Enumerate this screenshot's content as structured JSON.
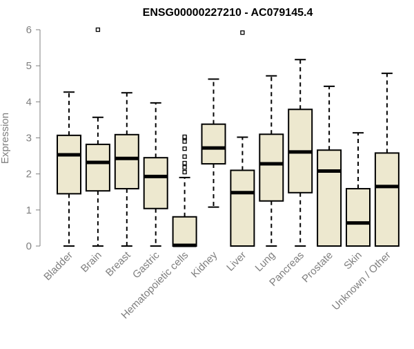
{
  "chart_data": {
    "type": "boxplot",
    "title": "ENSG00000227210 - AC079145.4",
    "xlabel": "",
    "ylabel": "Expression",
    "ylim": [
      0,
      6
    ],
    "yticks": [
      0,
      1,
      2,
      3,
      4,
      5,
      6
    ],
    "grid": false,
    "legend": "none",
    "colors": {
      "box_fill": "#ede8cf",
      "stroke": "#000000",
      "axis_text": "#7f7f7f"
    },
    "categories": [
      "Bladder",
      "Brain",
      "Breast",
      "Gastric",
      "Hematopoietic cells",
      "Kidney",
      "Liver",
      "Lung",
      "Pancreas",
      "Prostate",
      "Skin",
      "Unknown / Other"
    ],
    "boxes": [
      {
        "category": "Bladder",
        "min": 0,
        "q1": 1.45,
        "median": 2.53,
        "q3": 3.07,
        "max": 4.27,
        "outliers": []
      },
      {
        "category": "Brain",
        "min": 0,
        "q1": 1.53,
        "median": 2.32,
        "q3": 2.82,
        "max": 3.57,
        "outliers": [
          6.0
        ]
      },
      {
        "category": "Breast",
        "min": 0,
        "q1": 1.59,
        "median": 2.43,
        "q3": 3.09,
        "max": 4.25,
        "outliers": []
      },
      {
        "category": "Gastric",
        "min": 0,
        "q1": 1.04,
        "median": 1.93,
        "q3": 2.45,
        "max": 3.97,
        "outliers": []
      },
      {
        "category": "Hematopoietic cells",
        "min": 0,
        "q1": 0,
        "median": 0.02,
        "q3": 0.81,
        "max": 1.9,
        "outliers": [
          2.05,
          2.18,
          2.3,
          2.48,
          2.7,
          2.9,
          3.0,
          3.03
        ]
      },
      {
        "category": "Kidney",
        "min": 1.08,
        "q1": 2.28,
        "median": 2.72,
        "q3": 3.38,
        "max": 4.63,
        "outliers": []
      },
      {
        "category": "Liver",
        "min": 0,
        "q1": 0,
        "median": 1.48,
        "q3": 2.1,
        "max": 3.02,
        "outliers": [
          5.92
        ]
      },
      {
        "category": "Lung",
        "min": 0,
        "q1": 1.25,
        "median": 2.28,
        "q3": 3.1,
        "max": 4.72,
        "outliers": []
      },
      {
        "category": "Pancreas",
        "min": 0,
        "q1": 1.48,
        "median": 2.61,
        "q3": 3.79,
        "max": 5.17,
        "outliers": []
      },
      {
        "category": "Prostate",
        "min": 0,
        "q1": 0,
        "median": 2.08,
        "q3": 2.66,
        "max": 4.43,
        "outliers": []
      },
      {
        "category": "Skin",
        "min": 0,
        "q1": 0,
        "median": 0.64,
        "q3": 1.59,
        "max": 3.14,
        "outliers": []
      },
      {
        "category": "Unknown / Other",
        "min": 0,
        "q1": 0,
        "median": 1.65,
        "q3": 2.58,
        "max": 4.79,
        "outliers": []
      }
    ]
  }
}
